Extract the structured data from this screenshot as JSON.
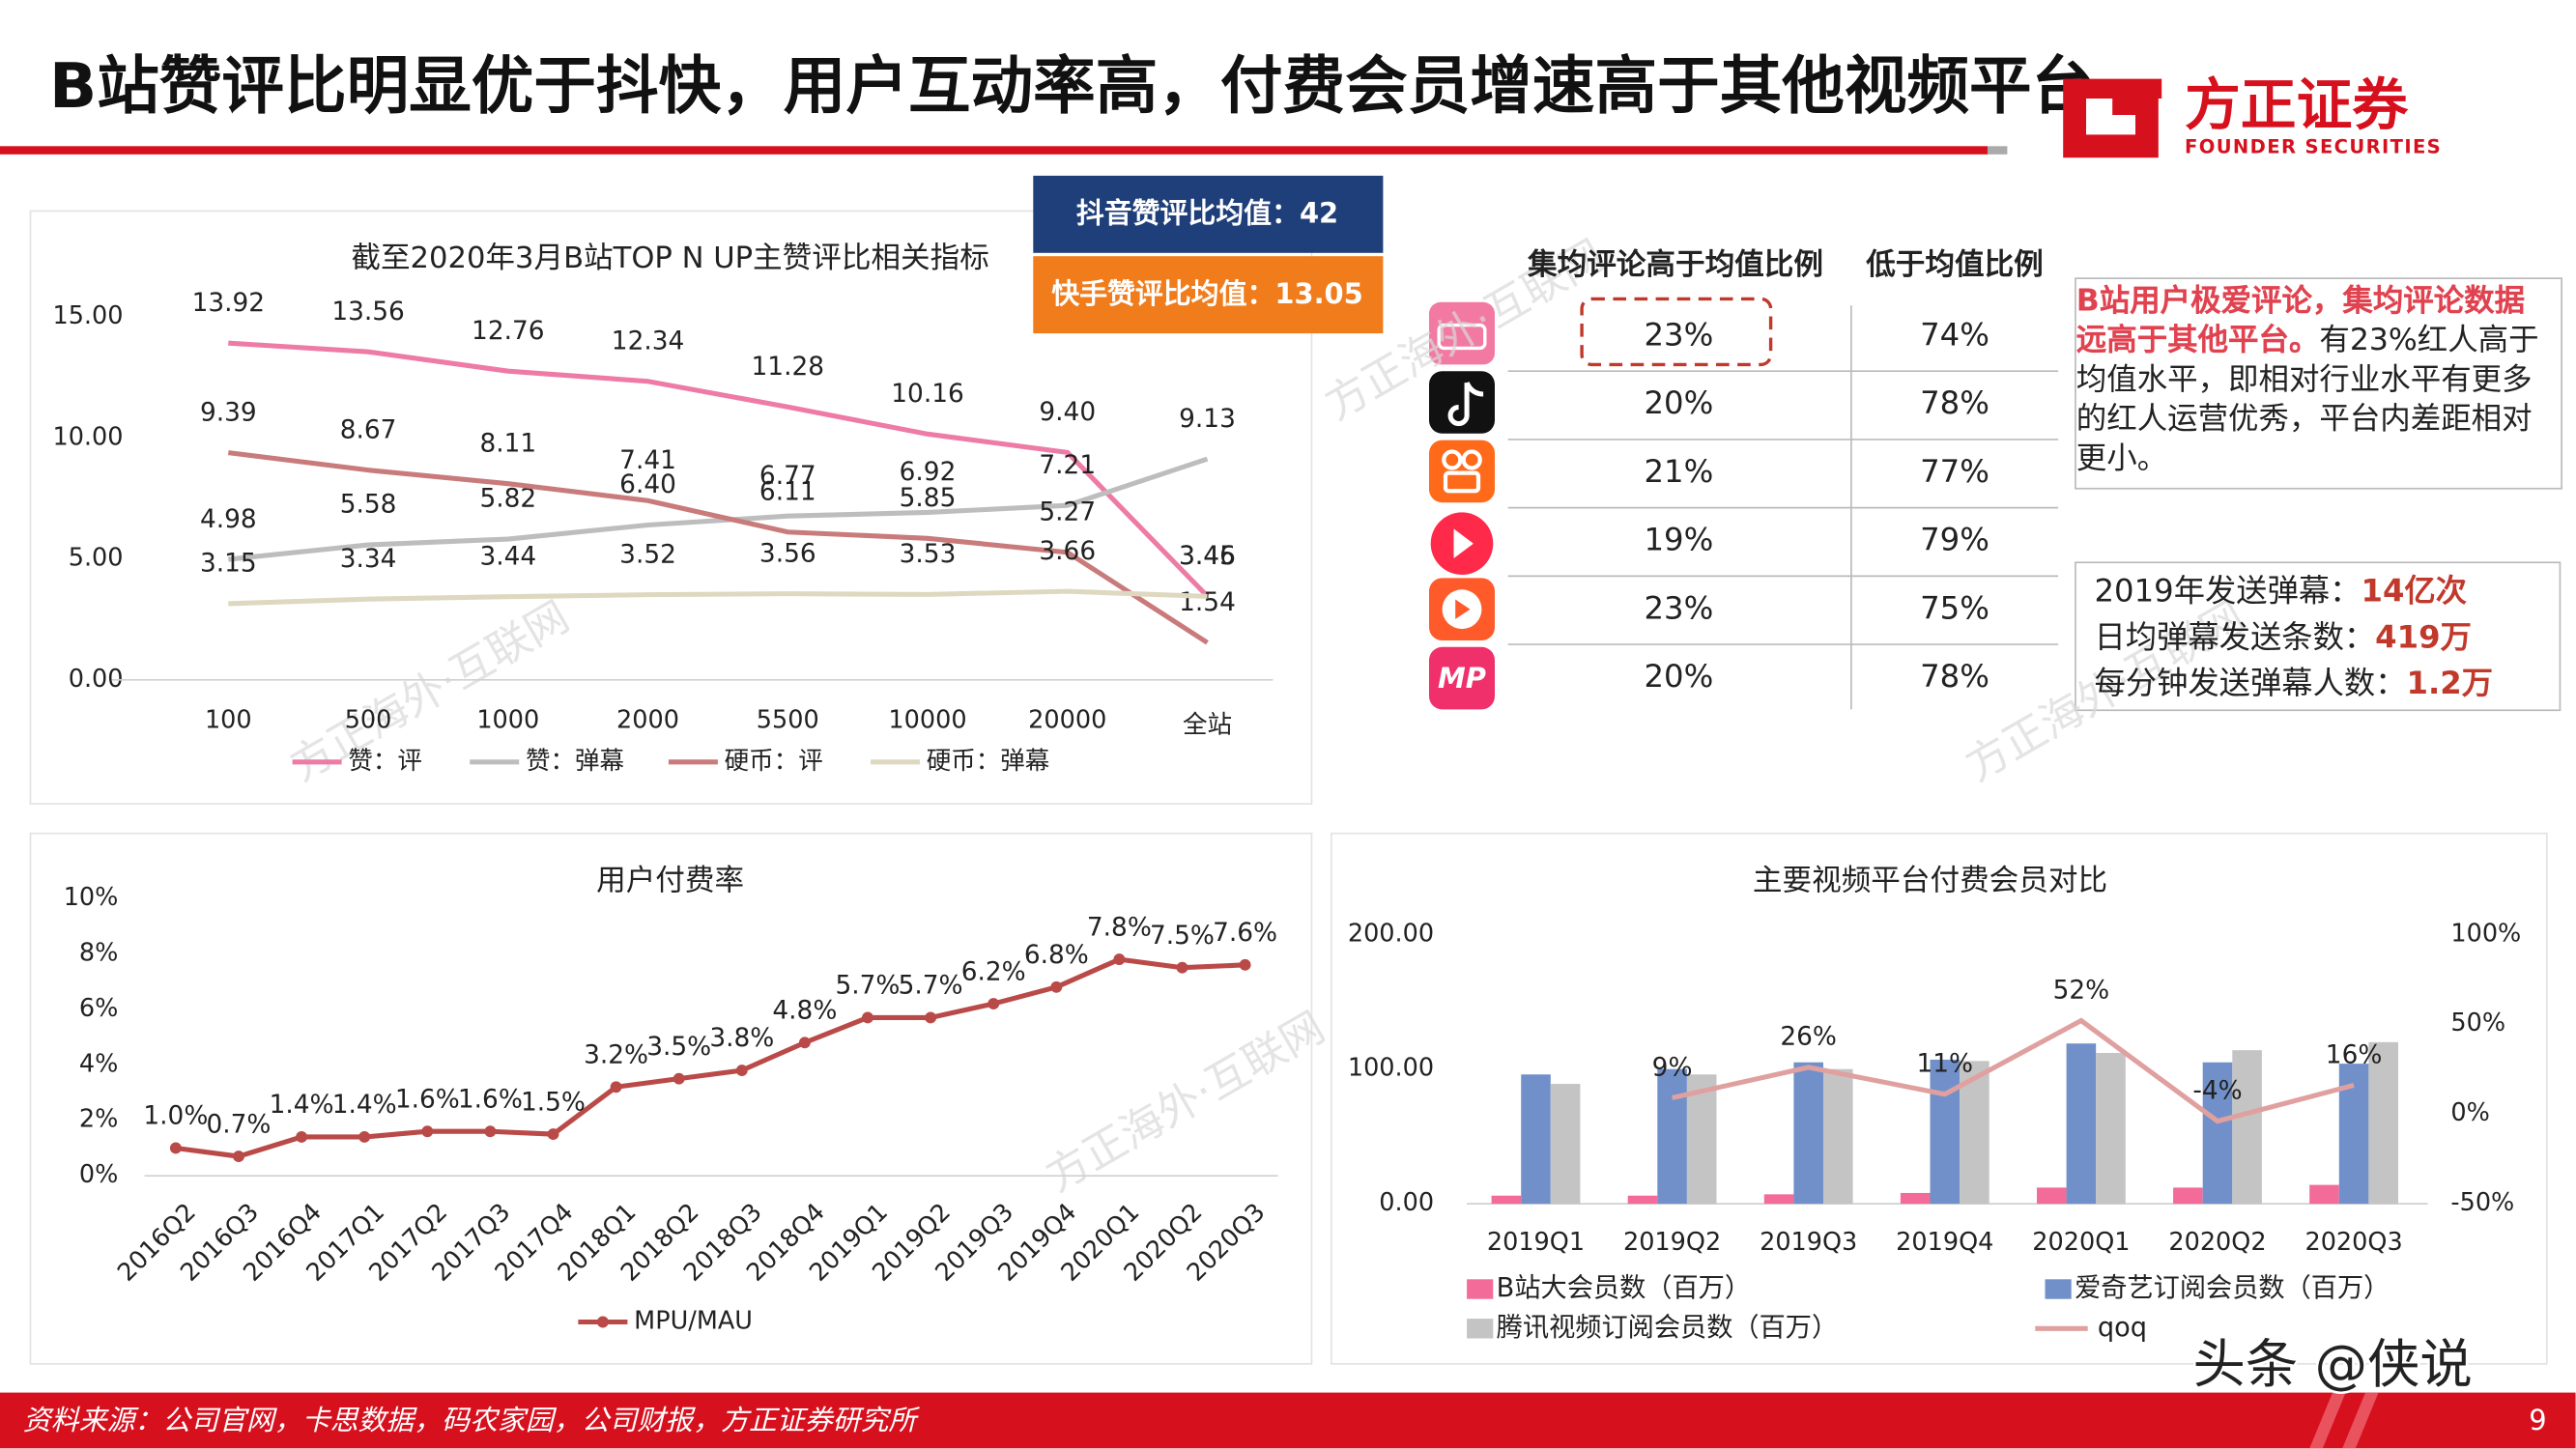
{
  "header": {
    "title": "B站赞评比明显优于抖快，用户互动率高，付费会员增速高于其他视频平台",
    "logo": "方正证券",
    "logo_en": "FOUNDER SECURITIES"
  },
  "chart_data": [
    {
      "type": "line",
      "title": "截至2020年3月B站TOP N UP主赞评比相关指标",
      "categories": [
        "100",
        "500",
        "1000",
        "2000",
        "5500",
        "10000",
        "20000",
        "全站"
      ],
      "series": [
        {
          "name": "赞：评",
          "color": "#ee7aa6",
          "values": [
            13.92,
            13.56,
            12.76,
            12.34,
            11.28,
            10.16,
            9.4,
            3.46
          ],
          "value_labels": [
            "13.92",
            "13.56",
            "12.76",
            "12.34",
            "11.28",
            "10.16",
            "9.40",
            "3.46"
          ]
        },
        {
          "name": "赞：弹幕",
          "color": "#bdbdbd",
          "values": [
            4.98,
            5.58,
            5.82,
            6.4,
            6.77,
            6.92,
            7.21,
            9.13
          ],
          "value_labels": [
            "4.98",
            "5.58",
            "5.82",
            "6.40",
            "6.77",
            "6.92",
            "7.21",
            "9.13"
          ]
        },
        {
          "name": "硬币：评",
          "color": "#c97a7a",
          "values": [
            9.39,
            8.67,
            8.11,
            7.41,
            6.11,
            5.85,
            5.27,
            1.54
          ],
          "value_labels": [
            "9.39",
            "8.67",
            "8.11",
            "7.41",
            "6.11",
            "5.85",
            "5.27",
            "1.54"
          ]
        },
        {
          "name": "硬币：弹幕",
          "color": "#ddd8bf",
          "values": [
            3.15,
            3.34,
            3.44,
            3.52,
            3.56,
            3.53,
            3.66,
            3.45
          ],
          "value_labels": [
            "3.15",
            "3.34",
            "3.44",
            "3.52",
            "3.56",
            "3.53",
            "3.66",
            "3.45"
          ]
        }
      ],
      "ylim": [
        0,
        15
      ],
      "yticks": [
        {
          "value": 0,
          "label": "0.00"
        },
        {
          "value": 5,
          "label": "5.00"
        },
        {
          "value": 10,
          "label": "10.00"
        },
        {
          "value": 15,
          "label": "15.00"
        }
      ]
    },
    {
      "type": "line",
      "title": "用户付费率",
      "categories": [
        "2016Q2",
        "2016Q3",
        "2016Q4",
        "2017Q1",
        "2017Q2",
        "2017Q3",
        "2017Q4",
        "2018Q1",
        "2018Q2",
        "2018Q3",
        "2018Q4",
        "2019Q1",
        "2019Q2",
        "2019Q3",
        "2019Q4",
        "2020Q1",
        "2020Q2",
        "2020Q3"
      ],
      "series": [
        {
          "name": "MPU/MAU",
          "color": "#b94a48",
          "values": [
            1.0,
            0.7,
            1.4,
            1.4,
            1.6,
            1.6,
            1.5,
            3.2,
            3.5,
            3.8,
            4.8,
            5.7,
            5.7,
            6.2,
            6.8,
            7.8,
            7.5,
            7.6
          ],
          "value_labels": [
            "1.0%",
            "0.7%",
            "1.4%",
            "1.4%",
            "1.6%",
            "1.6%",
            "1.5%",
            "3.2%",
            "3.5%",
            "3.8%",
            "4.8%",
            "5.7%",
            "5.7%",
            "6.2%",
            "6.8%",
            "7.8%",
            "7.5%",
            "7.6%"
          ]
        }
      ],
      "ylim": [
        0,
        10
      ],
      "yticks": [
        {
          "value": 0,
          "label": "0%"
        },
        {
          "value": 2,
          "label": "2%"
        },
        {
          "value": 4,
          "label": "4%"
        },
        {
          "value": 6,
          "label": "6%"
        },
        {
          "value": 8,
          "label": "8%"
        },
        {
          "value": 10,
          "label": "10%"
        }
      ]
    },
    {
      "type": "bar_line",
      "title": "主要视频平台付费会员对比",
      "categories": [
        "2019Q1",
        "2019Q2",
        "2019Q3",
        "2019Q4",
        "2020Q1",
        "2020Q2",
        "2020Q3"
      ],
      "series": [
        {
          "name": "B站大会员数（百万）",
          "color": "#f36b98",
          "type": "bar",
          "values": [
            6,
            6,
            7,
            8,
            12,
            12,
            14
          ]
        },
        {
          "name": "爱奇艺订阅会员数（百万）",
          "color": "#7190c9",
          "type": "bar",
          "values": [
            96,
            100,
            105,
            107,
            119,
            105,
            104
          ]
        },
        {
          "name": "腾讯视频订阅会员数（百万）",
          "color": "#c4c4c4",
          "type": "bar",
          "values": [
            89,
            96,
            100,
            106,
            112,
            114,
            120
          ]
        },
        {
          "name": "qoq",
          "color": "#e0a0a0",
          "type": "line",
          "axis": "y2",
          "values": [
            null,
            9,
            26,
            11,
            52,
            -4,
            16
          ],
          "value_labels": [
            null,
            "9%",
            "26%",
            "11%",
            "52%",
            "-4%",
            "16%"
          ]
        }
      ],
      "ylim": [
        0,
        200
      ],
      "yticks": [
        {
          "value": 0,
          "label": "0.00"
        },
        {
          "value": 100,
          "label": "100.00"
        },
        {
          "value": 200,
          "label": "200.00"
        }
      ],
      "y2lim": [
        -50,
        100
      ],
      "y2ticks": [
        {
          "value": -50,
          "label": "-50%"
        },
        {
          "value": 0,
          "label": "0%"
        },
        {
          "value": 50,
          "label": "50%"
        },
        {
          "value": 100,
          "label": "100%"
        }
      ]
    }
  ],
  "benchmarks": [
    "抖音赞评比均值：42",
    "快手赞评比均值：13.05"
  ],
  "table": {
    "header": [
      "集均评论高于均值比例",
      "低于均值比例"
    ],
    "rows": [
      [
        "23%",
        "74%"
      ],
      [
        "20%",
        "78%"
      ],
      [
        "21%",
        "77%"
      ],
      [
        "19%",
        "79%"
      ],
      [
        "23%",
        "75%"
      ],
      [
        "20%",
        "78%"
      ]
    ]
  },
  "note": {
    "highlight": "B站用户极爱评论，集均评论数据远高于其他平台。",
    "text": "有23%红人高于均值水平，即相对行业水平有更多的红人运营优秀，平台内差距相对更小。"
  },
  "stats": [
    {
      "label": "2019年发送弹幕：",
      "value": "14亿次"
    },
    {
      "label": "日均弹幕发送条数：",
      "value": "419万"
    },
    {
      "label": "每分钟发送弹幕人数：",
      "value": "1.2万"
    }
  ],
  "watermark": "方正海外·互联网",
  "footer": {
    "source": "资料来源：公司官网，卡思数据，码农家园，公司财报，方正证券研究所",
    "page": "9",
    "credit": "头条 @侠说"
  }
}
